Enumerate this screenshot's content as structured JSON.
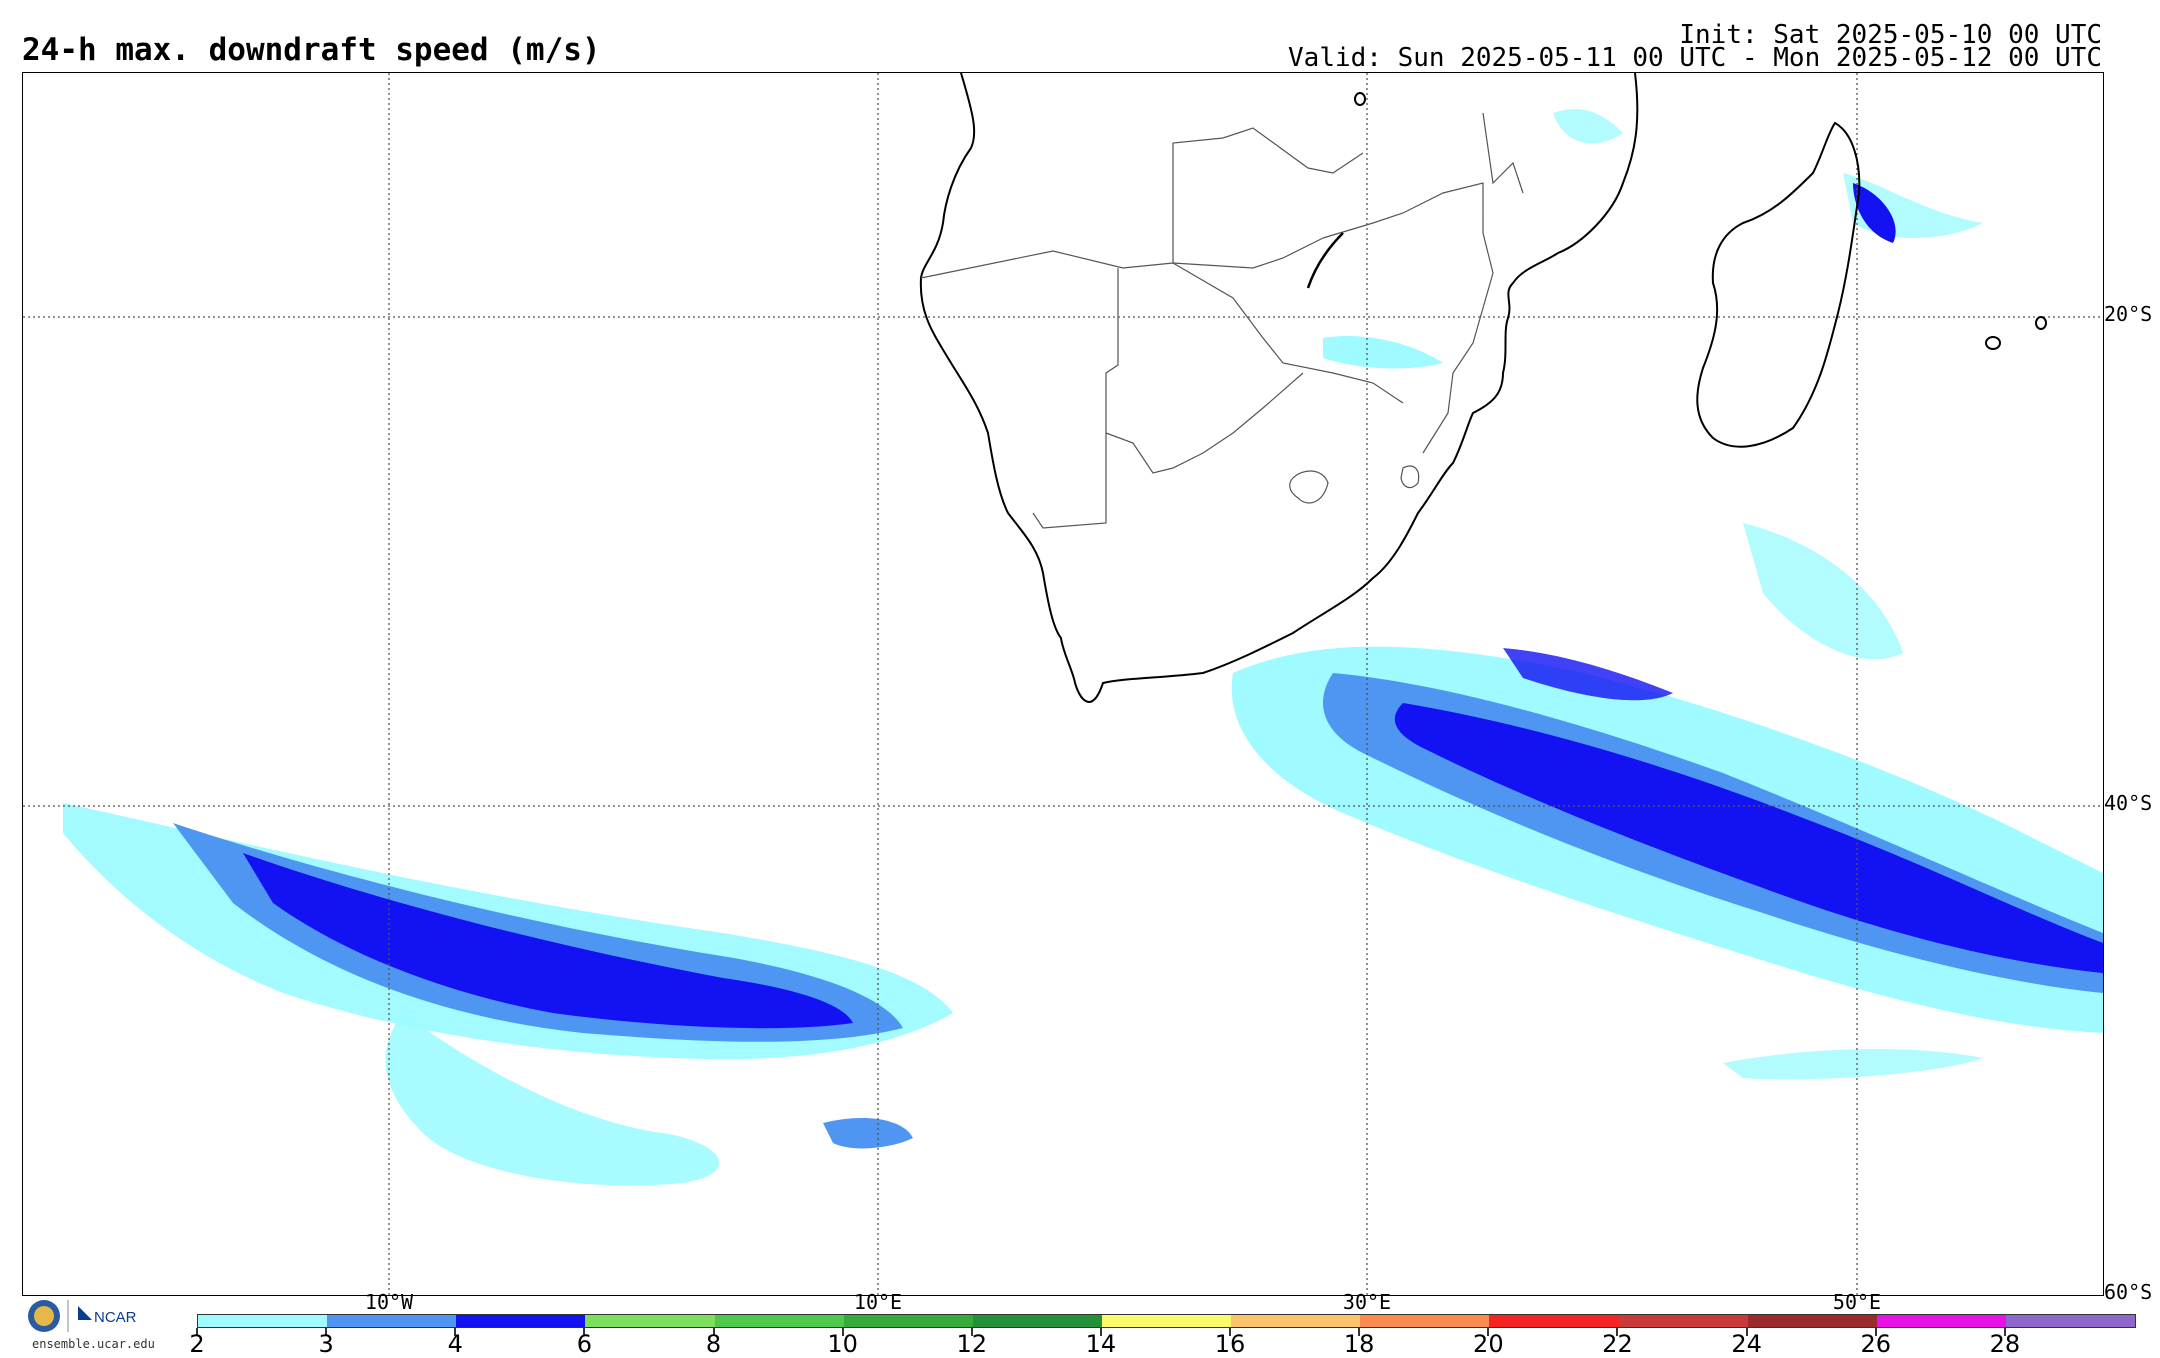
{
  "header": {
    "title": "24-h max. downdraft speed (m/s)",
    "init": "Init: Sat 2025-05-10 00 UTC",
    "valid": "Valid: Sun 2025-05-11 00 UTC - Mon 2025-05-12 00 UTC"
  },
  "map": {
    "lat_labels": [
      "20°S",
      "40°S",
      "60°S"
    ],
    "lon_labels": [
      "10°W",
      "10°E",
      "30°E",
      "50°E"
    ],
    "gridlines": "dotted"
  },
  "legend": {
    "tick_labels": [
      "2",
      "3",
      "4",
      "6",
      "8",
      "10",
      "12",
      "14",
      "16",
      "18",
      "20",
      "22",
      "24",
      "26",
      "28"
    ],
    "colors": [
      "#9ffbff",
      "#4f95f2",
      "#1212f2",
      "#7ee05a",
      "#4fc94a",
      "#34ab3a",
      "#23903a",
      "#fafa6a",
      "#fcc46a",
      "#fb8b4f",
      "#f42424",
      "#c93a3a",
      "#9b2b2b",
      "#e612e6",
      "#8e66cc"
    ]
  },
  "footer": {
    "logo_text": "NCAR",
    "site": "ensemble.ucar.edu"
  }
}
